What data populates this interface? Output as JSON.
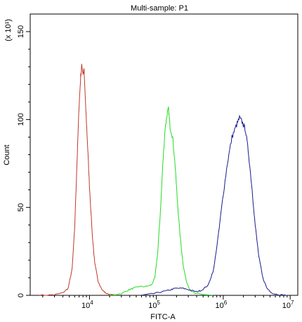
{
  "chart_data": {
    "type": "line",
    "title": "Multi-sample: P1",
    "xlabel": "FITC-A",
    "ylabel": "Count",
    "y_multiplier_label": "(x 10¹)",
    "x_scale": "log",
    "xlim": [
      1300,
      13000000
    ],
    "ylim": [
      0,
      160
    ],
    "x_ticks": [
      {
        "value": 10000,
        "base": "10",
        "exp": "4"
      },
      {
        "value": 100000,
        "base": "10",
        "exp": "5"
      },
      {
        "value": 1000000,
        "base": "10",
        "exp": "6"
      },
      {
        "value": 10000000,
        "base": "10",
        "exp": "7"
      }
    ],
    "y_ticks": [
      {
        "value": 0,
        "label": "0"
      },
      {
        "value": 50,
        "label": "50"
      },
      {
        "value": 100,
        "label": "100"
      },
      {
        "value": 150,
        "label": "150"
      }
    ],
    "grid": false,
    "series": [
      {
        "color": "#c0392b",
        "points": [
          [
            1800,
            0
          ],
          [
            3000,
            0.3
          ],
          [
            4000,
            1.5
          ],
          [
            4800,
            4
          ],
          [
            5500,
            15
          ],
          [
            6000,
            38
          ],
          [
            6500,
            75
          ],
          [
            7000,
            108
          ],
          [
            7400,
            125
          ],
          [
            7700,
            131
          ],
          [
            8000,
            126
          ],
          [
            8300,
            128
          ],
          [
            8700,
            110
          ],
          [
            9300,
            88
          ],
          [
            10000,
            62
          ],
          [
            11000,
            35
          ],
          [
            12000,
            18
          ],
          [
            13500,
            8
          ],
          [
            15500,
            3
          ],
          [
            18000,
            1
          ],
          [
            22000,
            0.3
          ],
          [
            26000,
            0
          ]
        ]
      },
      {
        "color": "#22dd22",
        "points": [
          [
            20000,
            0
          ],
          [
            30000,
            1
          ],
          [
            38000,
            3
          ],
          [
            45000,
            4
          ],
          [
            55000,
            5
          ],
          [
            70000,
            5
          ],
          [
            85000,
            6
          ],
          [
            95000,
            10
          ],
          [
            105000,
            25
          ],
          [
            115000,
            48
          ],
          [
            125000,
            75
          ],
          [
            135000,
            95
          ],
          [
            145000,
            103
          ],
          [
            152000,
            106
          ],
          [
            160000,
            96
          ],
          [
            175000,
            90
          ],
          [
            190000,
            75
          ],
          [
            205000,
            55
          ],
          [
            225000,
            35
          ],
          [
            250000,
            18
          ],
          [
            280000,
            8
          ],
          [
            320000,
            3
          ],
          [
            380000,
            1
          ],
          [
            500000,
            0.5
          ],
          [
            700000,
            0
          ]
        ]
      },
      {
        "color": "#1a1a8c",
        "points": [
          [
            60000,
            0
          ],
          [
            90000,
            1
          ],
          [
            120000,
            2
          ],
          [
            160000,
            3
          ],
          [
            190000,
            4
          ],
          [
            250000,
            4
          ],
          [
            320000,
            3
          ],
          [
            400000,
            2
          ],
          [
            480000,
            3
          ],
          [
            600000,
            6
          ],
          [
            720000,
            15
          ],
          [
            850000,
            35
          ],
          [
            980000,
            55
          ],
          [
            1150000,
            75
          ],
          [
            1350000,
            90
          ],
          [
            1550000,
            96
          ],
          [
            1750000,
            101
          ],
          [
            1950000,
            98
          ],
          [
            2150000,
            94
          ],
          [
            2400000,
            80
          ],
          [
            2700000,
            60
          ],
          [
            3000000,
            40
          ],
          [
            3400000,
            22
          ],
          [
            3900000,
            10
          ],
          [
            4500000,
            4
          ],
          [
            5500000,
            1
          ],
          [
            7000000,
            0.3
          ],
          [
            9000000,
            0
          ]
        ]
      }
    ]
  }
}
